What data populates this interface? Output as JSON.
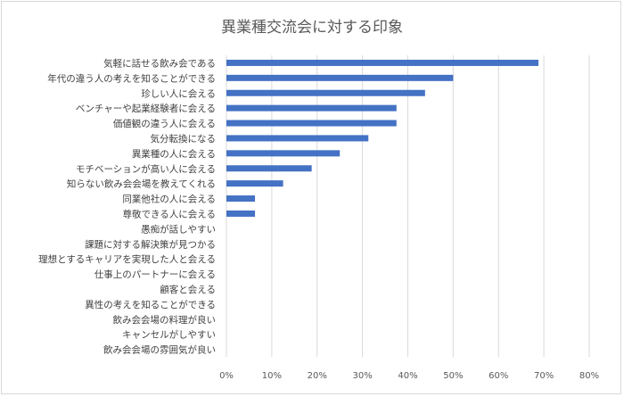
{
  "chart_data": {
    "type": "bar",
    "orientation": "horizontal",
    "title": "異業種交流会に対する印象",
    "categories": [
      "気軽に話せる飲み会である",
      "年代の違う人の考えを知ることができる",
      "珍しい人に会える",
      "ベンチャーや起業経験者に会える",
      "価値観の違う人に会える",
      "気分転換になる",
      "異業種の人に会える",
      "モチベーションが高い人に会える",
      "知らない飲み会会場を教えてくれる",
      "同業他社の人に会える",
      "尊敬できる人に会える",
      "愚痴が話しやすい",
      "課題に対する解決策が見つかる",
      "理想とするキャリアを実現した人と会える",
      "仕事上のパートナーに会える",
      "顧客と会える",
      "異性の考えを知ることができる",
      "飲み会会場の料理が良い",
      "キャンセルがしやすい",
      "飲み会会場の雰囲気が良い"
    ],
    "values": [
      0.688,
      0.5,
      0.438,
      0.375,
      0.375,
      0.313,
      0.25,
      0.188,
      0.125,
      0.063,
      0.063,
      0,
      0,
      0,
      0,
      0,
      0,
      0,
      0,
      0
    ],
    "xlim": [
      0,
      0.8
    ],
    "x_ticks": [
      "0%",
      "10%",
      "20%",
      "30%",
      "40%",
      "50%",
      "60%",
      "70%",
      "80%"
    ],
    "grid": true,
    "colors": {
      "bar": "#4472c4",
      "grid": "#d9d9d9"
    }
  }
}
